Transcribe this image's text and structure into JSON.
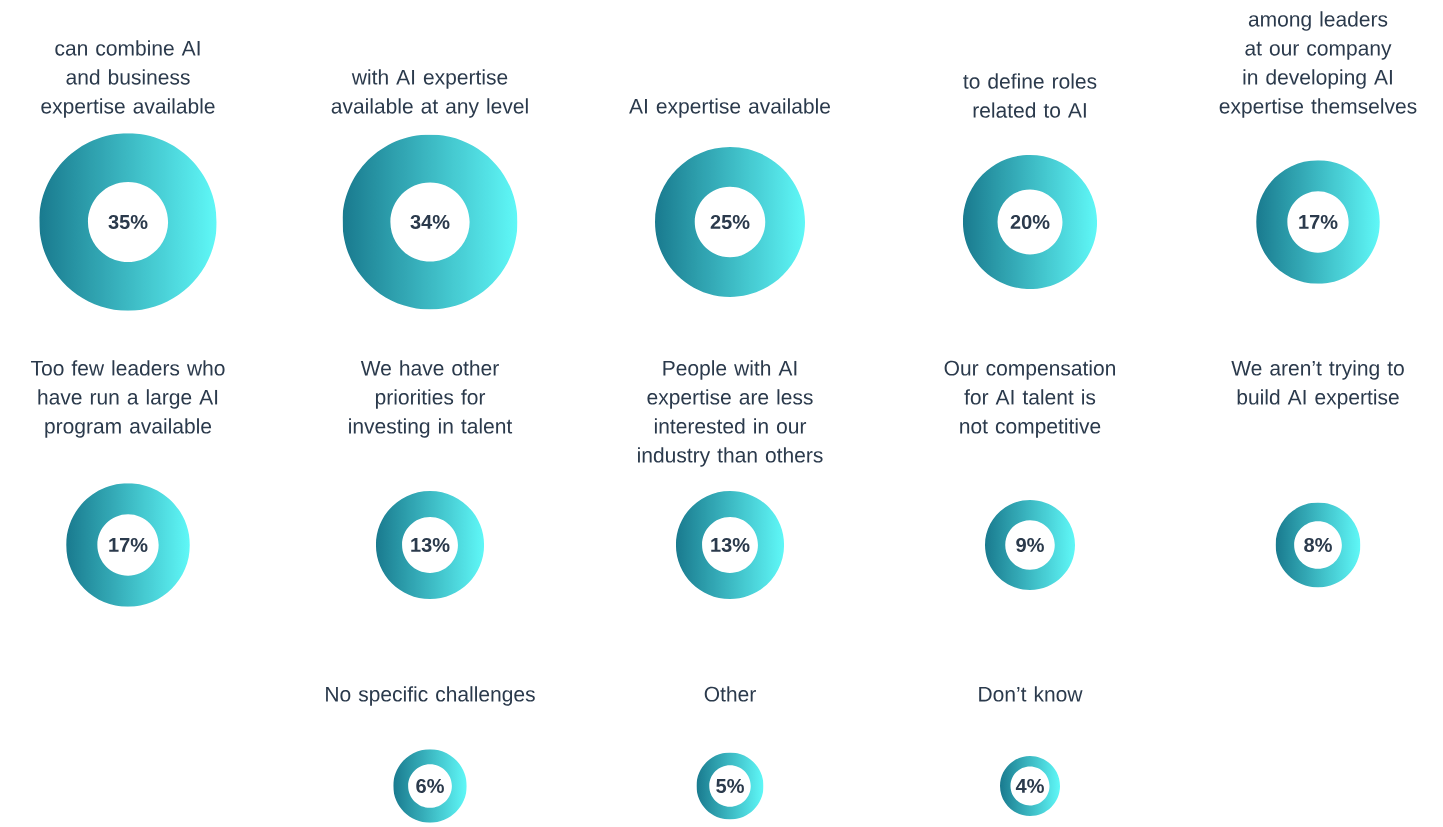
{
  "chart_data": {
    "type": "other",
    "categories": [
      "can combine AI and business expertise available",
      "with AI expertise available at any level",
      "AI expertise available",
      "to define roles related to AI",
      "among leaders at our company in developing AI expertise themselves",
      "Too few leaders who have run a large AI program available",
      "We have other priorities for investing in talent",
      "People with AI expertise are less interested in our industry than others",
      "Our compensation for AI talent is not competitive",
      "We aren’t trying to build AI expertise",
      "No specific challenges",
      "Other",
      "Don’t know"
    ],
    "values": [
      35,
      34,
      25,
      20,
      17,
      17,
      13,
      13,
      9,
      8,
      6,
      5,
      4
    ],
    "value_labels": [
      "35%",
      "34%",
      "25%",
      "20%",
      "17%",
      "17%",
      "13%",
      "13%",
      "9%",
      "8%",
      "6%",
      "5%",
      "4%"
    ],
    "color": "#197a8e"
  }
}
